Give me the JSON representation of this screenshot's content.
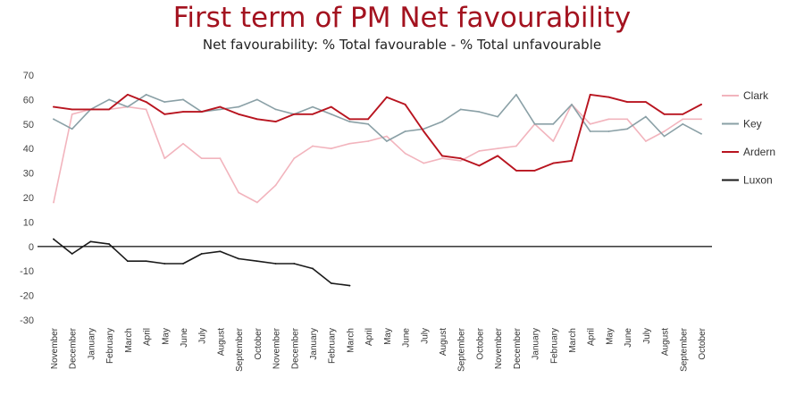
{
  "chart_data": {
    "type": "line",
    "title": "First term of PM Net favourability",
    "subtitle": "Net favourability: % Total favourable - % Total unfavourable",
    "xlabel": "",
    "ylabel": "",
    "ylim": [
      -30,
      70
    ],
    "yticks": [
      70,
      60,
      50,
      40,
      30,
      20,
      10,
      0,
      -10,
      -20,
      -30
    ],
    "grid": false,
    "legend_position": "right",
    "categories": [
      "November",
      "December",
      "January",
      "February",
      "March",
      "April",
      "May",
      "June",
      "July",
      "August",
      "September",
      "October",
      "November",
      "December",
      "January",
      "February",
      "March",
      "April",
      "May",
      "June",
      "July",
      "August",
      "September",
      "October",
      "November",
      "December",
      "January",
      "February",
      "March",
      "April",
      "May",
      "June",
      "July",
      "August",
      "September",
      "October"
    ],
    "series": [
      {
        "name": "Clark",
        "color": "#f2b4bd",
        "values": [
          18,
          54,
          56,
          56,
          57,
          56,
          36,
          42,
          36,
          36,
          22,
          18,
          25,
          36,
          41,
          40,
          42,
          43,
          45,
          38,
          34,
          36,
          35,
          39,
          40,
          41,
          50,
          43,
          58,
          50,
          52,
          52,
          43,
          47,
          52,
          52
        ]
      },
      {
        "name": "Key",
        "color": "#8aa0a6",
        "values": [
          52,
          48,
          56,
          60,
          57,
          62,
          59,
          60,
          55,
          56,
          57,
          60,
          56,
          54,
          57,
          54,
          51,
          50,
          43,
          47,
          48,
          51,
          56,
          55,
          53,
          62,
          50,
          50,
          58,
          47,
          47,
          48,
          53,
          45,
          50,
          46
        ]
      },
      {
        "name": "Ardern",
        "color": "#b8141f",
        "values": [
          57,
          56,
          56,
          56,
          62,
          59,
          54,
          55,
          55,
          57,
          54,
          52,
          51,
          54,
          54,
          57,
          52,
          52,
          61,
          58,
          47,
          37,
          36,
          33,
          37,
          31,
          31,
          34,
          35,
          62,
          61,
          59,
          59,
          54,
          54,
          58
        ]
      },
      {
        "name": "Luxon",
        "color": "#1a1a1a",
        "values": [
          3,
          -3,
          2,
          1,
          -6,
          -6,
          -7,
          -7,
          -3,
          -2,
          -5,
          -6,
          -7,
          -7,
          -9,
          -15,
          -16,
          null,
          null,
          null,
          null,
          null,
          null,
          null,
          null,
          null,
          null,
          null,
          null,
          null,
          null,
          null,
          null,
          null,
          null,
          null
        ]
      }
    ]
  }
}
